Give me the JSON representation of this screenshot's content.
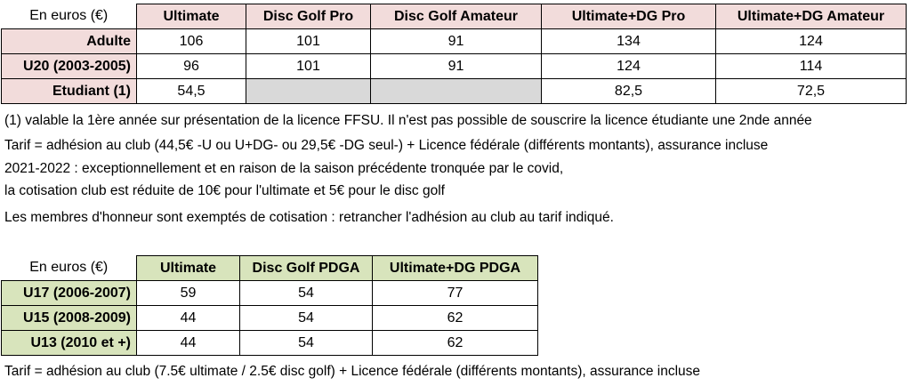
{
  "table1": {
    "corner": "En euros (€)",
    "headers": [
      "Ultimate",
      "Disc Golf Pro",
      "Disc Golf Amateur",
      "Ultimate+DG Pro",
      "Ultimate+DG Amateur"
    ],
    "rows": [
      {
        "label": "Adulte",
        "cells": [
          "106",
          "101",
          "91",
          "134",
          "124"
        ]
      },
      {
        "label": "U20 (2003-2005)",
        "cells": [
          "96",
          "101",
          "91",
          "124",
          "114"
        ]
      },
      {
        "label": "Etudiant (1)",
        "cells": [
          "54,5",
          "",
          "",
          "82,5",
          "72,5"
        ]
      }
    ]
  },
  "notes": [
    "(1) valable la 1ère année sur présentation de la licence FFSU. Il n'est pas possible de souscrire la licence étudiante une 2nde année",
    "Tarif = adhésion au club (44,5€ -U ou U+DG- ou 29,5€ -DG seul-) + Licence fédérale (différents montants), assurance incluse",
    "2021-2022 : exceptionnellement et en raison de la saison précédente tronquée par le covid,",
    "la cotisation club est réduite de 10€ pour l'ultimate et 5€ pour le disc golf",
    "Les membres d'honneur sont exemptés de cotisation : retrancher l'adhésion au club au tarif indiqué."
  ],
  "table2": {
    "corner": "En euros (€)",
    "headers": [
      "Ultimate",
      "Disc Golf PDGA",
      "Ultimate+DG PDGA"
    ],
    "rows": [
      {
        "label": "U17 (2006-2007)",
        "cells": [
          "59",
          "54",
          "77"
        ]
      },
      {
        "label": "U15 (2008-2009)",
        "cells": [
          "44",
          "54",
          "62"
        ]
      },
      {
        "label": "U13 (2010 et +)",
        "cells": [
          "44",
          "54",
          "62"
        ]
      }
    ]
  },
  "footnote": "Tarif = adhésion au club (7.5€ ultimate / 2.5€ disc golf) + Licence fédérale (différents montants), assurance incluse"
}
